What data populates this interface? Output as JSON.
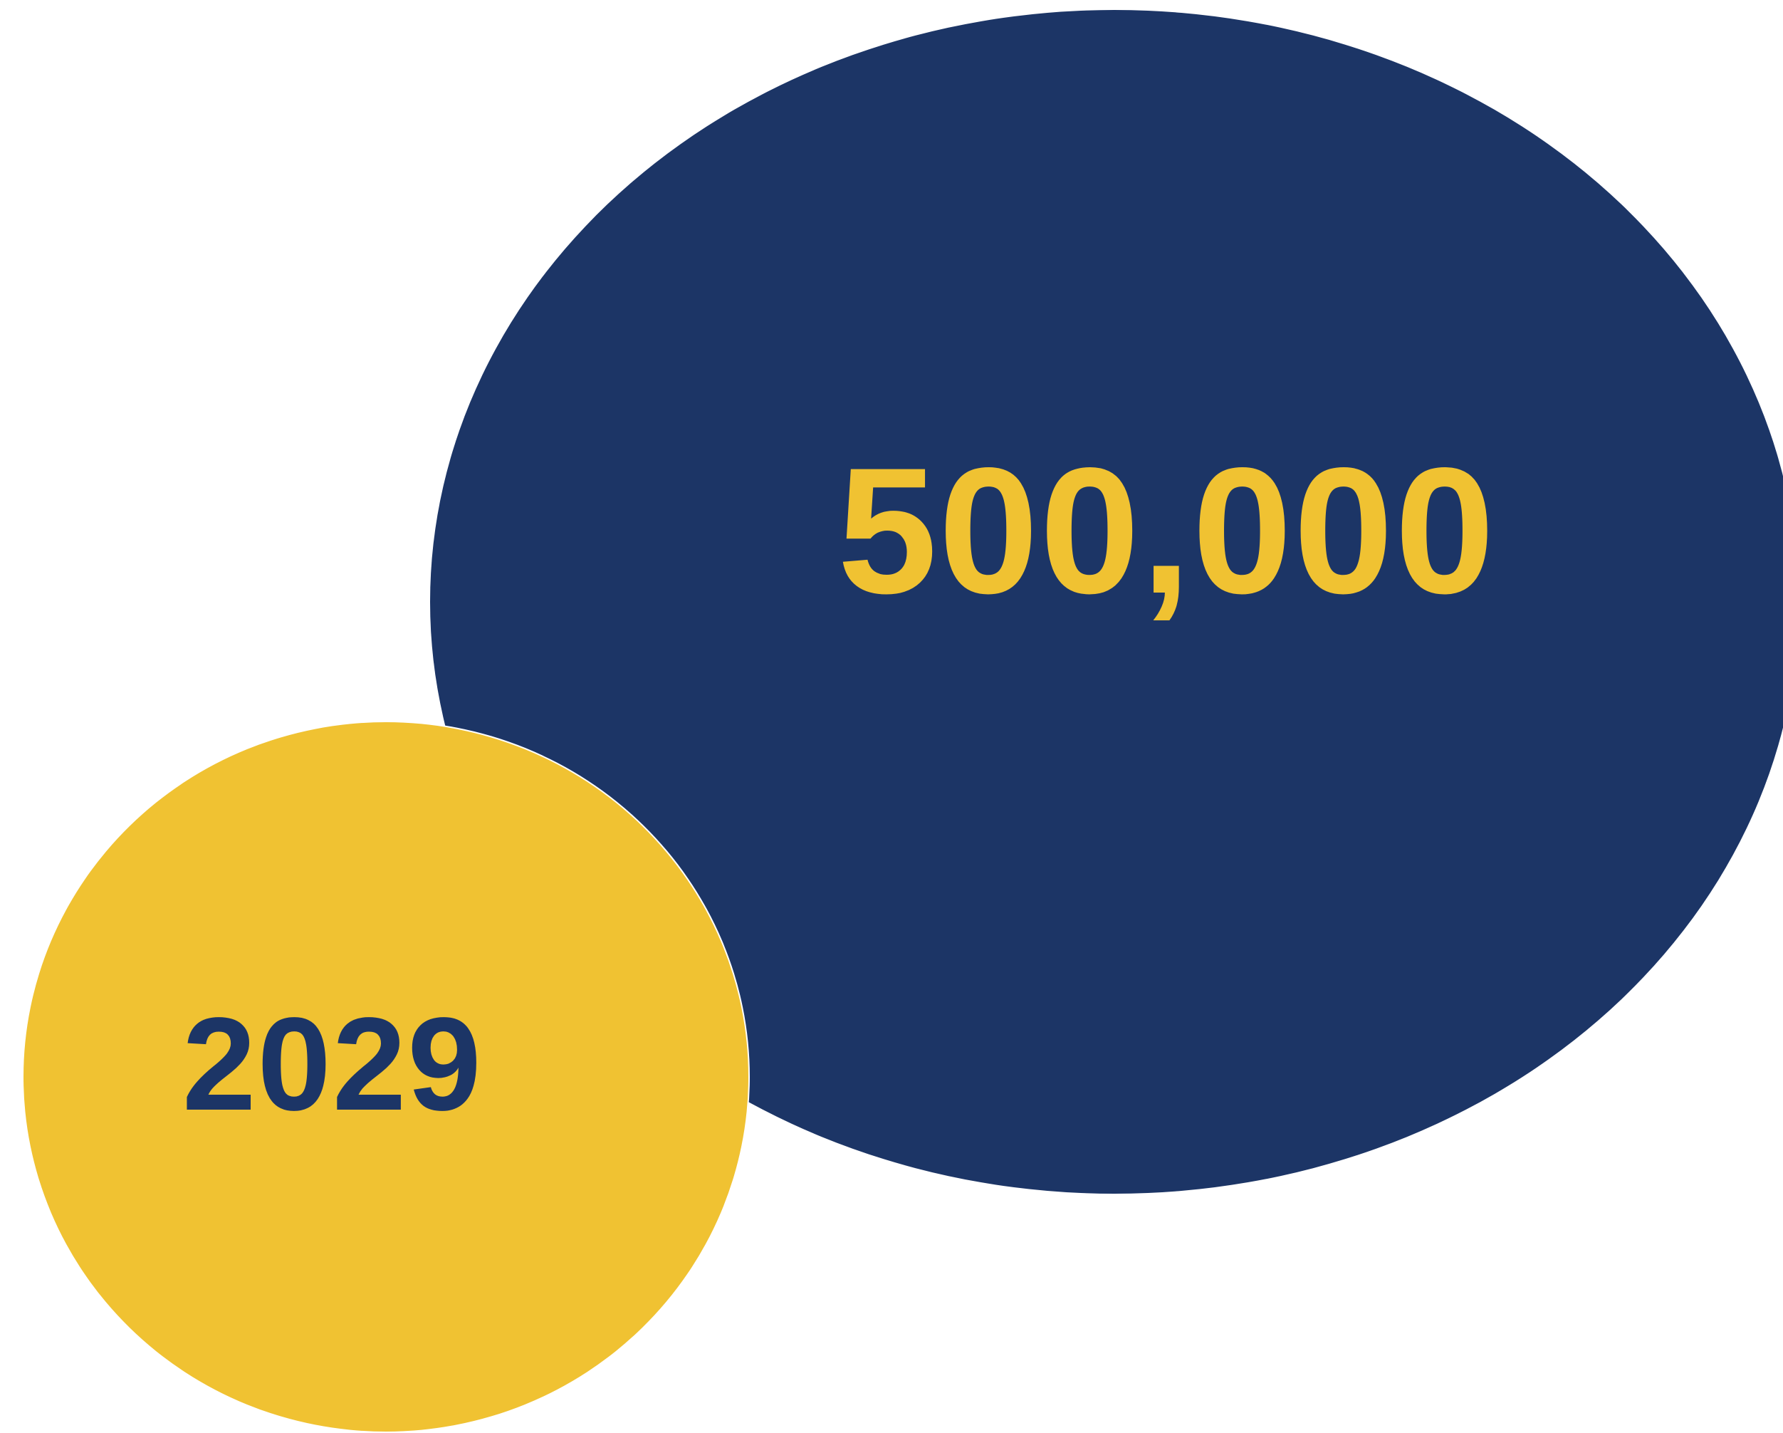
{
  "stats": {
    "big_number": "500,000",
    "year": "2029"
  },
  "colors": {
    "navy": "#1c3566",
    "gold": "#f0c232",
    "background": "#ffffff"
  }
}
